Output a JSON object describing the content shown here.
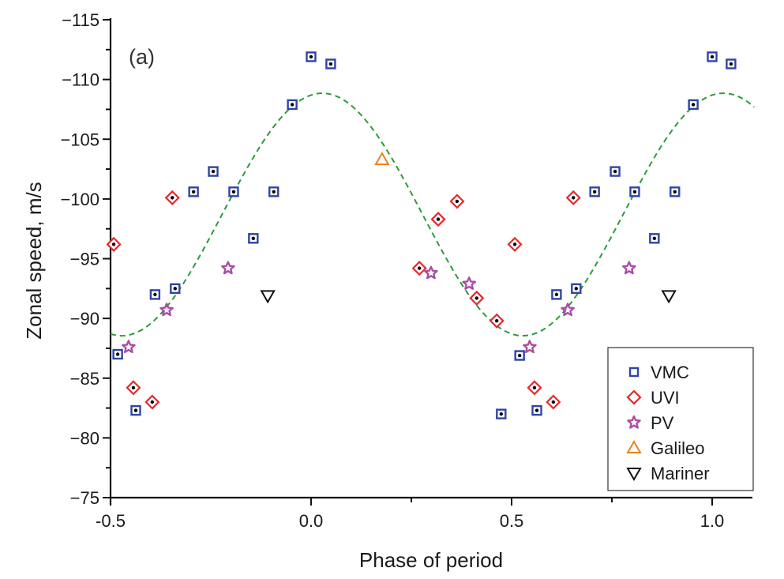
{
  "chart_data": {
    "type": "scatter",
    "panel_label": "(a)",
    "title": "",
    "xlabel": "Phase of period",
    "ylabel": "Zonal speed, m/s",
    "xlim": [
      -0.5,
      1.1
    ],
    "ylim": [
      -75,
      -115
    ],
    "y_inverted": true,
    "x_ticks": [
      -0.5,
      0.0,
      0.5,
      1.0
    ],
    "x_tick_labels": [
      "-0.5",
      "0.0",
      "0.5",
      "1.0"
    ],
    "x_minor_ticks": [
      0.25,
      0.75
    ],
    "y_ticks": [
      -115,
      -110,
      -105,
      -100,
      -95,
      -90,
      -85,
      -80,
      -75
    ],
    "y_tick_labels": [
      "−115",
      "−110",
      "−105",
      "−100",
      "−95",
      "−90",
      "−85",
      "−80",
      "−75"
    ],
    "y_minor_ticks": [
      -112.5,
      -107.5,
      -102.5,
      -97.5,
      -92.5,
      -87.5,
      -82.5,
      -77.5
    ],
    "grid": false,
    "legend_position": "bottom-right",
    "series": [
      {
        "name": "VMC",
        "marker": "square-dot",
        "color": "#2e45a6",
        "points": [
          [
            -0.482,
            -87.0
          ],
          [
            -0.437,
            -82.3
          ],
          [
            -0.389,
            -92.0
          ],
          [
            -0.339,
            -92.5
          ],
          [
            -0.293,
            -100.6
          ],
          [
            -0.244,
            -102.3
          ],
          [
            -0.193,
            -100.6
          ],
          [
            -0.144,
            -96.7
          ],
          [
            -0.093,
            -100.6
          ],
          [
            -0.047,
            -107.9
          ],
          [
            0.0,
            -111.9
          ],
          [
            0.049,
            -111.3
          ],
          [
            0.474,
            -82.0
          ],
          [
            0.52,
            -86.9
          ],
          [
            0.563,
            -82.3
          ],
          [
            0.612,
            -92.0
          ],
          [
            0.661,
            -92.5
          ],
          [
            0.707,
            -100.6
          ],
          [
            0.758,
            -102.3
          ],
          [
            0.807,
            -100.6
          ],
          [
            0.856,
            -96.7
          ],
          [
            0.907,
            -100.6
          ],
          [
            0.953,
            -107.9
          ],
          [
            1.0,
            -111.9
          ],
          [
            1.047,
            -111.3
          ]
        ]
      },
      {
        "name": "UVI",
        "marker": "diamond-dot",
        "color": "#e8262b",
        "points": [
          [
            -0.492,
            -96.2
          ],
          [
            -0.443,
            -84.2
          ],
          [
            -0.396,
            -83.0
          ],
          [
            -0.346,
            -100.1
          ],
          [
            0.27,
            -94.2
          ],
          [
            0.317,
            -98.3
          ],
          [
            0.364,
            -99.8
          ],
          [
            0.413,
            -91.7
          ],
          [
            0.463,
            -89.8
          ],
          [
            0.508,
            -96.2
          ],
          [
            0.557,
            -84.2
          ],
          [
            0.604,
            -83.0
          ],
          [
            0.654,
            -100.1
          ]
        ]
      },
      {
        "name": "PV",
        "marker": "star",
        "color": "#a84ea8",
        "points": [
          [
            -0.455,
            -87.6
          ],
          [
            -0.36,
            -90.7
          ],
          [
            -0.207,
            -94.2
          ],
          [
            0.299,
            -93.8
          ],
          [
            0.394,
            -92.9
          ],
          [
            0.545,
            -87.6
          ],
          [
            0.64,
            -90.7
          ],
          [
            0.793,
            -94.2
          ]
        ]
      },
      {
        "name": "Galileo",
        "marker": "triangle-up",
        "color": "#f0801e",
        "points": [
          [
            0.177,
            -103.3
          ]
        ]
      },
      {
        "name": "Mariner",
        "marker": "triangle-down",
        "color": "#111111",
        "points": [
          [
            -0.108,
            -91.9
          ],
          [
            0.892,
            -91.9
          ]
        ]
      }
    ],
    "fit_curve": {
      "name": "sinusoidal fit",
      "style": "dashed",
      "color": "#2e9a3a",
      "model": "v = mean + amplitude * cos(2*pi*(x - phase))",
      "mean": -98.7,
      "amplitude": -10.15,
      "phase": 0.028,
      "period": 1.0,
      "x_range": [
        -0.5,
        1.105
      ]
    }
  }
}
